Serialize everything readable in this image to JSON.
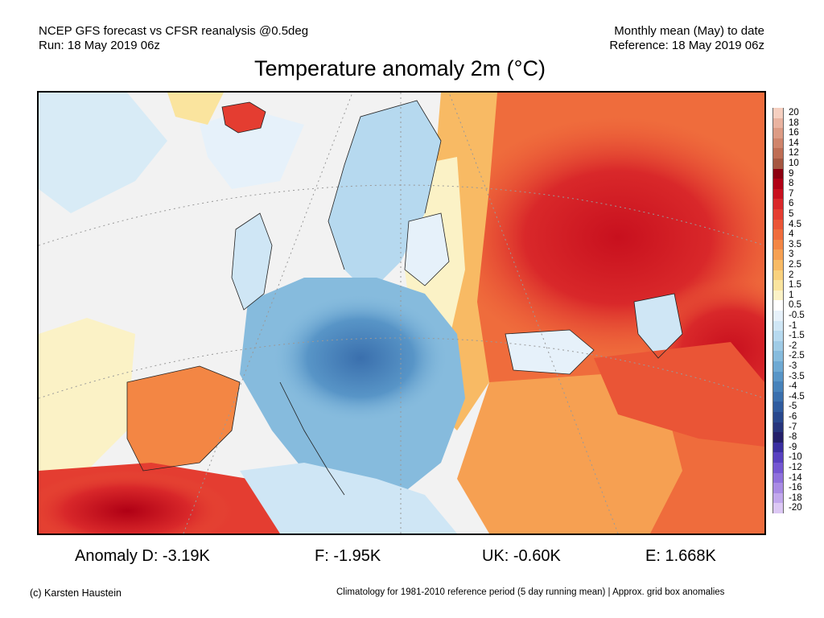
{
  "header": {
    "left_line1": "NCEP GFS forecast vs CFSR reanalysis @0.5deg",
    "left_line2": "Run: 18 May 2019 06z",
    "right_line1": "Monthly mean (May) to date",
    "right_line2": "Reference: 18 May 2019 06z"
  },
  "title": "Temperature anomaly 2m (°C)",
  "stats": {
    "germany": "Anomaly D: -3.19K",
    "france": "F: -1.95K",
    "uk": "UK: -0.60K",
    "spain": "E: 1.668K"
  },
  "footer": {
    "credit": "(c) Karsten Haustein",
    "note": "Climatology for 1981-2010 reference period (5 day running mean) | Approx. grid box anomalies"
  },
  "colorbar": {
    "labels": [
      "20",
      "18",
      "16",
      "14",
      "12",
      "10",
      "9",
      "8",
      "7",
      "6",
      "5",
      "4.5",
      "4",
      "3.5",
      "3",
      "2.5",
      "2",
      "1.5",
      "1",
      "0.5",
      "-0.5",
      "-1",
      "-1.5",
      "-2",
      "-2.5",
      "-3",
      "-3.5",
      "-4",
      "-4.5",
      "-5",
      "-6",
      "-7",
      "-8",
      "-9",
      "-10",
      "-12",
      "-14",
      "-16",
      "-18",
      "-20"
    ],
    "colors": [
      "#f5cfc0",
      "#e9b3a0",
      "#dc9b84",
      "#cf846b",
      "#be6d54",
      "#a55640",
      "#8c0010",
      "#b00015",
      "#c8101e",
      "#d9282a",
      "#e43d31",
      "#ea5536",
      "#ef6c3c",
      "#f38644",
      "#f6a052",
      "#f8ba64",
      "#f9d17d",
      "#fae49e",
      "#fbf2c6",
      "#ffffff",
      "#e6f1fa",
      "#cfe6f5",
      "#b6d9ef",
      "#9fcbe6",
      "#86bbdd",
      "#6ea9d3",
      "#5895c7",
      "#4782ba",
      "#3a6fad",
      "#2f5b9e",
      "#28478d",
      "#26347c",
      "#241f6a",
      "#3a2ea0",
      "#5840c0",
      "#7456d2",
      "#8f70dc",
      "#a98be4",
      "#c2a8ec",
      "#dcc8f4"
    ]
  },
  "map": {
    "land_warm": "#f08a48",
    "land_hot": "#d9352b",
    "land_cool": "#9fcbe6",
    "land_cold": "#5895c7",
    "sea_pale": "#e8f1f8",
    "neutral": "#f4f4f4"
  }
}
